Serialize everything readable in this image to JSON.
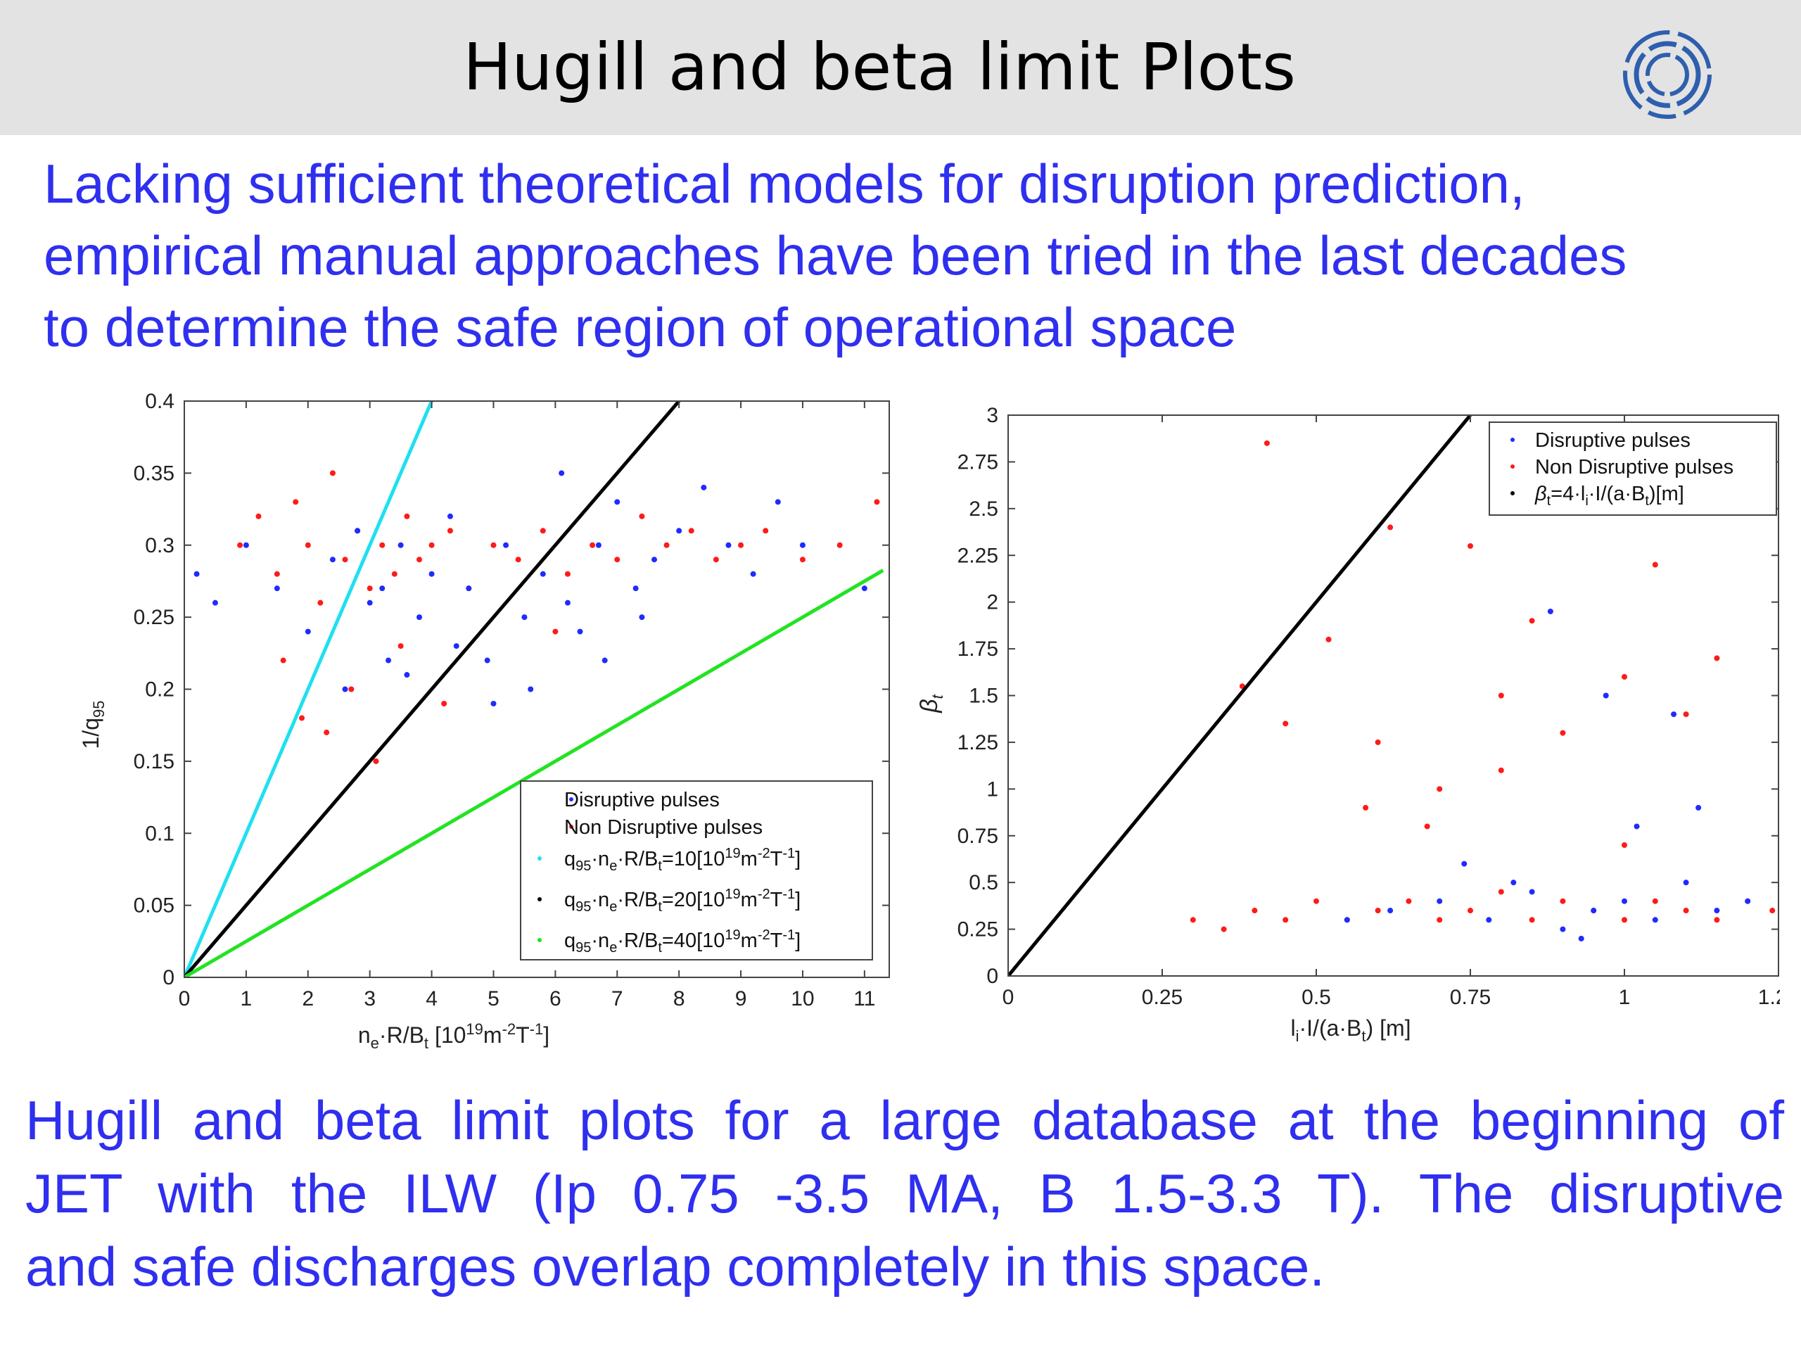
{
  "header": {
    "title": "Hugill and beta limit  Plots",
    "logo_icon": "circular-logo-icon"
  },
  "intro": {
    "lines": [
      "Lacking sufficient theoretical models for disruption prediction,",
      "empirical manual approaches have been tried in the last decades",
      "to determine the safe region of operational space"
    ]
  },
  "caption": {
    "lines": [
      "Hugill and beta limit plots for a large database at the beginning of",
      "JET with the ILW (Ip 0.75 -3.5 MA, B 1.5-3.3 T). The disruptive",
      "and safe discharges overlap completely in this space."
    ]
  },
  "colors": {
    "text_blue": "#2f2ff0",
    "disruptive": "#1f2bff",
    "non_disruptive": "#ff1a1a",
    "cyan": "#20e0ee",
    "black": "#000000",
    "green": "#22e322"
  },
  "chart_data": [
    {
      "type": "scatter",
      "xlabel": "n_e·R/B_t [10^19 m^-2 T^-1]",
      "ylabel": "1/q_95",
      "xlim": [
        0,
        11.4
      ],
      "ylim": [
        0,
        0.4
      ],
      "x_ticks": [
        0,
        1,
        2,
        3,
        4,
        5,
        6,
        7,
        8,
        9,
        10,
        11
      ],
      "y_ticks": [
        0,
        0.05,
        0.1,
        0.15,
        0.2,
        0.25,
        0.3,
        0.35,
        0.4
      ],
      "legend_position": "bottom-right",
      "series": [
        {
          "name": "Disruptive pulses",
          "kind": "points",
          "color": "#1f2bff",
          "x": [
            0.2,
            0.5,
            1.0,
            1.5,
            2.0,
            2.4,
            2.8,
            3.0,
            3.2,
            3.5,
            3.8,
            4.0,
            4.3,
            4.6,
            4.9,
            5.2,
            5.5,
            5.8,
            6.1,
            6.4,
            6.7,
            7.0,
            7.3,
            7.6,
            8.0,
            8.4,
            8.8,
            9.2,
            9.6,
            10.0,
            11.0,
            3.6,
            4.4,
            5.0,
            5.6,
            6.2,
            6.8,
            7.4,
            2.6,
            3.3
          ],
          "y": [
            0.28,
            0.26,
            0.3,
            0.27,
            0.24,
            0.29,
            0.31,
            0.26,
            0.27,
            0.3,
            0.25,
            0.28,
            0.32,
            0.27,
            0.22,
            0.3,
            0.25,
            0.28,
            0.35,
            0.24,
            0.3,
            0.33,
            0.27,
            0.29,
            0.31,
            0.34,
            0.3,
            0.28,
            0.33,
            0.3,
            0.27,
            0.21,
            0.23,
            0.19,
            0.2,
            0.26,
            0.22,
            0.25,
            0.2,
            0.22
          ]
        },
        {
          "name": "Non Disruptive pulses",
          "kind": "points",
          "color": "#ff1a1a",
          "x": [
            0.9,
            1.2,
            1.5,
            1.8,
            2.0,
            2.2,
            2.4,
            2.6,
            2.8,
            3.0,
            3.2,
            3.4,
            3.6,
            3.8,
            4.0,
            4.3,
            4.6,
            5.0,
            5.4,
            5.8,
            6.2,
            6.6,
            7.0,
            7.4,
            7.8,
            8.2,
            8.6,
            9.0,
            9.4,
            10.0,
            10.6,
            11.2,
            1.6,
            1.9,
            2.3,
            2.7,
            3.1,
            3.5,
            4.2,
            6.0
          ],
          "y": [
            0.3,
            0.32,
            0.28,
            0.33,
            0.3,
            0.26,
            0.35,
            0.29,
            0.31,
            0.27,
            0.3,
            0.28,
            0.32,
            0.29,
            0.3,
            0.31,
            0.27,
            0.3,
            0.29,
            0.31,
            0.28,
            0.3,
            0.29,
            0.32,
            0.3,
            0.31,
            0.29,
            0.3,
            0.31,
            0.29,
            0.3,
            0.33,
            0.22,
            0.18,
            0.17,
            0.2,
            0.15,
            0.23,
            0.19,
            0.24
          ]
        },
        {
          "name": "q95·ne·R/Bt=10[10^19 m^-2 T^-1]",
          "kind": "line",
          "color": "#20e0ee",
          "x": [
            0,
            4.0
          ],
          "y": [
            0,
            0.4
          ]
        },
        {
          "name": "q95·ne·R/Bt=20[10^19 m^-2 T^-1]",
          "kind": "line",
          "color": "#000000",
          "x": [
            0,
            8.0
          ],
          "y": [
            0,
            0.4
          ]
        },
        {
          "name": "q95·ne·R/Bt=40[10^19 m^-2 T^-1]",
          "kind": "line",
          "color": "#22e322",
          "x": [
            0,
            11.3
          ],
          "y": [
            0,
            0.2825
          ]
        }
      ]
    },
    {
      "type": "scatter",
      "xlabel": "l_i·I/(a·B_t) [m]",
      "ylabel": "β_t",
      "xlim": [
        0,
        1.25
      ],
      "ylim": [
        0,
        3
      ],
      "x_ticks": [
        0,
        0.25,
        0.5,
        0.75,
        1,
        1.25
      ],
      "y_ticks": [
        0,
        0.25,
        0.5,
        0.75,
        1,
        1.25,
        1.5,
        1.75,
        2,
        2.25,
        2.5,
        2.75,
        3
      ],
      "legend_position": "top-right",
      "series": [
        {
          "name": "Disruptive pulses",
          "kind": "points",
          "color": "#1f2bff",
          "x": [
            0.55,
            0.62,
            0.7,
            0.78,
            0.85,
            0.9,
            0.95,
            1.0,
            1.05,
            1.1,
            1.15,
            1.2,
            0.88,
            0.97,
            1.08,
            0.74,
            0.82,
            1.12,
            0.93,
            1.02
          ],
          "y": [
            0.3,
            0.35,
            0.4,
            0.3,
            0.45,
            0.25,
            0.35,
            0.4,
            0.3,
            0.5,
            0.35,
            0.4,
            1.95,
            1.5,
            1.4,
            0.6,
            0.5,
            0.9,
            0.2,
            0.8
          ]
        },
        {
          "name": "Non Disruptive pulses",
          "kind": "points",
          "color": "#ff1a1a",
          "x": [
            0.3,
            0.35,
            0.4,
            0.45,
            0.5,
            0.55,
            0.6,
            0.65,
            0.7,
            0.75,
            0.8,
            0.85,
            0.9,
            0.95,
            1.0,
            1.05,
            1.1,
            1.15,
            1.2,
            1.24,
            0.42,
            0.38,
            0.45,
            0.52,
            0.6,
            0.7,
            0.8,
            0.9,
            1.0,
            1.1,
            0.62,
            0.75,
            0.85,
            0.95,
            1.05,
            1.15,
            0.58,
            0.68,
            0.8,
            1.0
          ],
          "y": [
            0.3,
            0.25,
            0.35,
            0.3,
            0.4,
            0.3,
            0.35,
            0.4,
            0.3,
            0.35,
            0.45,
            0.3,
            0.4,
            0.35,
            0.3,
            0.4,
            0.35,
            0.3,
            0.4,
            0.35,
            2.85,
            1.55,
            1.35,
            1.8,
            1.25,
            1.0,
            1.5,
            1.3,
            1.6,
            1.4,
            2.4,
            2.3,
            1.9,
            2.6,
            2.2,
            1.7,
            0.9,
            0.8,
            1.1,
            0.7
          ]
        },
        {
          "name": "β_t=4·l_i·I/(a·B_t)[m]",
          "kind": "line",
          "color": "#000000",
          "x": [
            0,
            0.75
          ],
          "y": [
            0,
            3
          ]
        }
      ]
    }
  ]
}
